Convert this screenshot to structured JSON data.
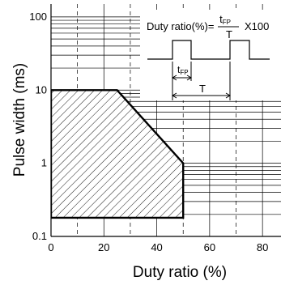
{
  "chart_data": {
    "type": "area",
    "xlabel": "Duty ratio (%)",
    "ylabel": "Pulse width (ms)",
    "x_scale": "linear",
    "y_scale": "log",
    "xlim": [
      0,
      87
    ],
    "ylim": [
      0.1,
      150
    ],
    "x_ticks": [
      0,
      20,
      40,
      60,
      80
    ],
    "x_tick_labels": [
      "0",
      "20",
      "40",
      "60",
      "80"
    ],
    "y_ticks": [
      0.1,
      1,
      10,
      100
    ],
    "y_tick_labels": [
      "0.1",
      "1",
      "10",
      "100"
    ],
    "grid": true,
    "hatched_region": {
      "name": "",
      "points": [
        {
          "x": 0,
          "y": 0.18
        },
        {
          "x": 0,
          "y": 10
        },
        {
          "x": 25,
          "y": 10
        },
        {
          "x": 50,
          "y": 1
        },
        {
          "x": 50,
          "y": 0.18
        }
      ]
    },
    "inset": {
      "formula_prefix": "Duty ratio(%)=",
      "numerator": "t",
      "numerator_sub": "FP",
      "denominator": "T",
      "suffix": "X100",
      "pulse_width_label": "t",
      "pulse_width_sub": "FP",
      "period_label": "T"
    }
  }
}
